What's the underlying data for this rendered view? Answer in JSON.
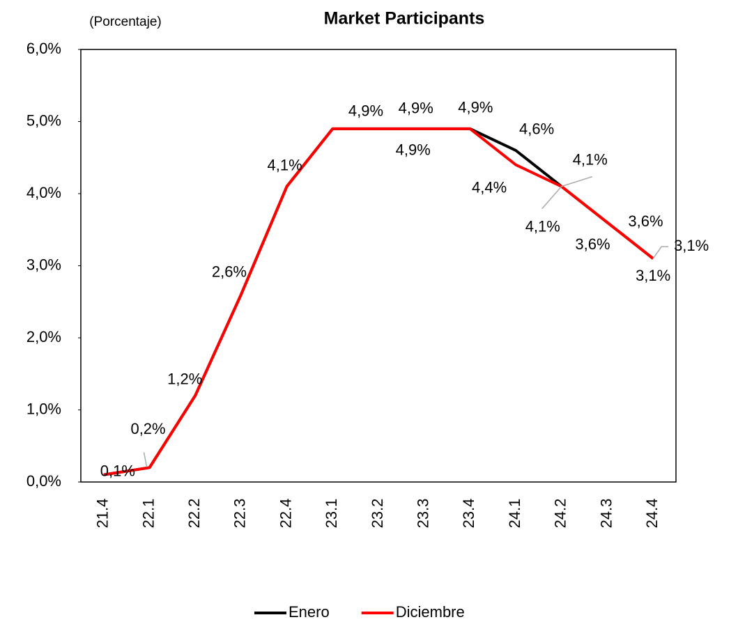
{
  "chart_data": {
    "type": "line",
    "title": "Market Participants",
    "subtitle": "(Porcentaje)",
    "categories": [
      "21.4",
      "22.1",
      "22.2",
      "22.3",
      "22.4",
      "23.1",
      "23.2",
      "23.3",
      "23.4",
      "24.1",
      "24.2",
      "24.3",
      "24.4"
    ],
    "series": [
      {
        "name": "Enero",
        "color": "#000000",
        "values": [
          0.1,
          0.2,
          1.2,
          2.6,
          4.1,
          4.9,
          4.9,
          4.9,
          4.9,
          4.6,
          4.1,
          3.6,
          3.1
        ],
        "value_labels": [
          "0,1%",
          "0,2%",
          "1,2%",
          "2,6%",
          "4,1%",
          null,
          "4,9%",
          "4,9%",
          "4,9%",
          "4,6%",
          "4,1%",
          "3,6%",
          "3,1%"
        ]
      },
      {
        "name": "Diciembre",
        "color": "#ff0000",
        "values": [
          0.1,
          0.2,
          1.2,
          2.6,
          4.1,
          4.9,
          4.9,
          4.9,
          4.9,
          4.4,
          4.1,
          3.6,
          3.1
        ],
        "value_labels": [
          null,
          null,
          null,
          null,
          null,
          null,
          null,
          "4,9%",
          null,
          "4,4%",
          "4,1%",
          "3,6%",
          "3,1%"
        ]
      }
    ],
    "ylim": [
      0,
      6
    ],
    "yticks": [
      {
        "value": 0,
        "label": "0,0%"
      },
      {
        "value": 1,
        "label": "1,0%"
      },
      {
        "value": 2,
        "label": "2,0%"
      },
      {
        "value": 3,
        "label": "3,0%"
      },
      {
        "value": 4,
        "label": "4,0%"
      },
      {
        "value": 5,
        "label": "5,0%"
      },
      {
        "value": 6,
        "label": "6,0%"
      }
    ],
    "legend": "bottom"
  }
}
